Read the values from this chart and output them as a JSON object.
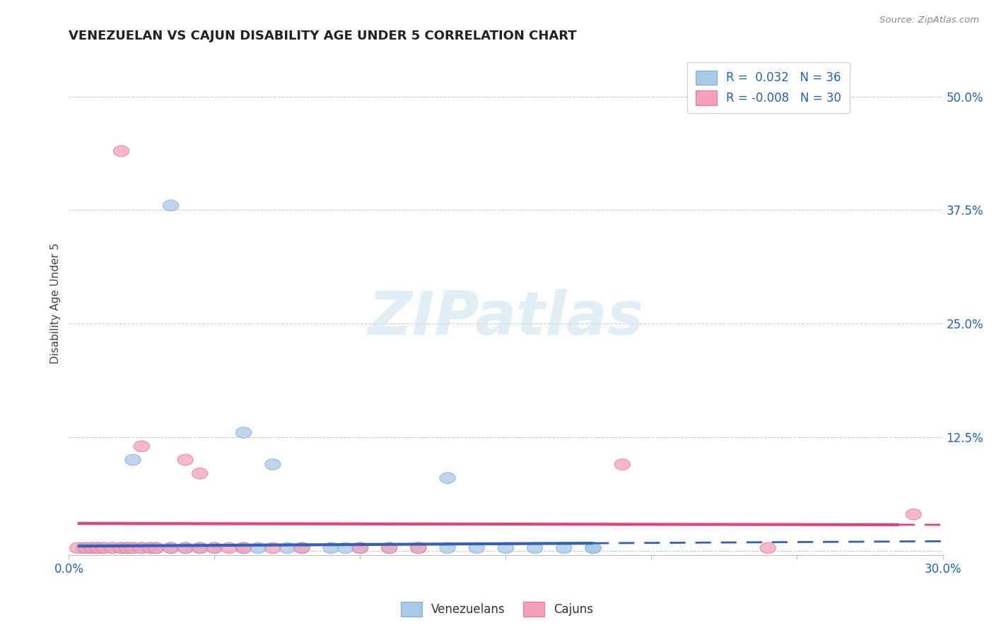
{
  "title": "VENEZUELAN VS CAJUN DISABILITY AGE UNDER 5 CORRELATION CHART",
  "source": "Source: ZipAtlas.com",
  "ylabel": "Disability Age Under 5",
  "xlim": [
    0.0,
    0.3
  ],
  "ylim": [
    -0.005,
    0.55
  ],
  "yticks": [
    0.0,
    0.125,
    0.25,
    0.375,
    0.5
  ],
  "ytick_labels": [
    "",
    "12.5%",
    "25.0%",
    "37.5%",
    "50.0%"
  ],
  "xticks": [
    0.0,
    0.05,
    0.1,
    0.15,
    0.2,
    0.25,
    0.3
  ],
  "xtick_labels": [
    "0.0%",
    "",
    "",
    "",
    "",
    "",
    "30.0%"
  ],
  "blue_R": 0.032,
  "blue_N": 36,
  "pink_R": -0.008,
  "pink_N": 30,
  "blue_color": "#a8c8e8",
  "pink_color": "#f4a0b8",
  "blue_edge_color": "#7aafd4",
  "pink_edge_color": "#e87898",
  "blue_line_color": "#3060c0",
  "pink_line_color": "#e84070",
  "blue_line_start": 0.003,
  "blue_line_end_solid": 0.18,
  "blue_line_end": 0.3,
  "pink_line_start": 0.003,
  "pink_line_end_solid": 0.285,
  "pink_line_end": 0.3,
  "blue_intercept": 0.005,
  "blue_slope": 0.018,
  "pink_intercept": 0.03,
  "pink_slope": -0.005,
  "watermark_text": "ZIPatlas",
  "blue_points": [
    [
      0.005,
      0.003
    ],
    [
      0.008,
      0.003
    ],
    [
      0.01,
      0.003
    ],
    [
      0.012,
      0.003
    ],
    [
      0.015,
      0.003
    ],
    [
      0.018,
      0.003
    ],
    [
      0.02,
      0.003
    ],
    [
      0.022,
      0.003
    ],
    [
      0.025,
      0.003
    ],
    [
      0.028,
      0.003
    ],
    [
      0.03,
      0.003
    ],
    [
      0.035,
      0.003
    ],
    [
      0.04,
      0.003
    ],
    [
      0.045,
      0.003
    ],
    [
      0.05,
      0.003
    ],
    [
      0.06,
      0.003
    ],
    [
      0.065,
      0.003
    ],
    [
      0.075,
      0.003
    ],
    [
      0.08,
      0.003
    ],
    [
      0.09,
      0.003
    ],
    [
      0.095,
      0.003
    ],
    [
      0.1,
      0.003
    ],
    [
      0.11,
      0.003
    ],
    [
      0.12,
      0.003
    ],
    [
      0.13,
      0.003
    ],
    [
      0.14,
      0.003
    ],
    [
      0.15,
      0.003
    ],
    [
      0.16,
      0.003
    ],
    [
      0.17,
      0.003
    ],
    [
      0.18,
      0.003
    ],
    [
      0.022,
      0.1
    ],
    [
      0.035,
      0.38
    ],
    [
      0.06,
      0.13
    ],
    [
      0.07,
      0.095
    ],
    [
      0.13,
      0.08
    ],
    [
      0.18,
      0.003
    ]
  ],
  "pink_points": [
    [
      0.003,
      0.003
    ],
    [
      0.006,
      0.003
    ],
    [
      0.008,
      0.003
    ],
    [
      0.01,
      0.003
    ],
    [
      0.012,
      0.003
    ],
    [
      0.015,
      0.003
    ],
    [
      0.018,
      0.003
    ],
    [
      0.02,
      0.003
    ],
    [
      0.022,
      0.003
    ],
    [
      0.025,
      0.003
    ],
    [
      0.028,
      0.003
    ],
    [
      0.03,
      0.003
    ],
    [
      0.035,
      0.003
    ],
    [
      0.04,
      0.003
    ],
    [
      0.045,
      0.003
    ],
    [
      0.05,
      0.003
    ],
    [
      0.055,
      0.003
    ],
    [
      0.06,
      0.003
    ],
    [
      0.07,
      0.003
    ],
    [
      0.08,
      0.003
    ],
    [
      0.1,
      0.003
    ],
    [
      0.11,
      0.003
    ],
    [
      0.12,
      0.003
    ],
    [
      0.29,
      0.04
    ],
    [
      0.018,
      0.44
    ],
    [
      0.025,
      0.115
    ],
    [
      0.04,
      0.1
    ],
    [
      0.045,
      0.085
    ],
    [
      0.19,
      0.095
    ],
    [
      0.24,
      0.003
    ]
  ]
}
